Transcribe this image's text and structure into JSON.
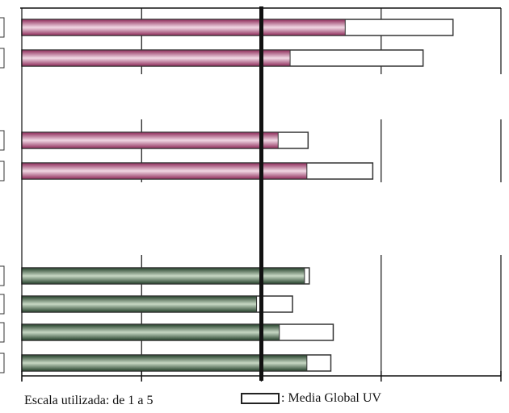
{
  "chart_data": {
    "type": "bar",
    "orientation": "horizontal",
    "xlim": [
      0,
      4
    ],
    "reference_line": 2,
    "legend": {
      "label": ": Media Global UV",
      "placement": "bottom-center"
    },
    "footer_note": "Escala utilizada: de 1 a 5",
    "groups": [
      {
        "fill": "pink",
        "rows": [
          {
            "value": 2.7,
            "global_uv": 3.6
          },
          {
            "value": 2.24,
            "global_uv": 3.35
          }
        ]
      },
      {
        "fill": "pink",
        "rows": [
          {
            "value": 2.14,
            "global_uv": 2.39
          },
          {
            "value": 2.38,
            "global_uv": 2.93
          }
        ]
      },
      {
        "fill": "green",
        "rows": [
          {
            "value": 2.36,
            "global_uv": 2.4
          },
          {
            "value": 1.96,
            "global_uv": 2.26
          },
          {
            "value": 2.15,
            "global_uv": 2.6
          },
          {
            "value": 2.38,
            "global_uv": 2.58
          }
        ]
      }
    ],
    "colors": {
      "pink_dark": "#8e2b5a",
      "pink_light": "#f1d8e4",
      "green_dark": "#24402a",
      "green_light": "#c7d8c4",
      "axis": "#111111"
    },
    "grid": true
  }
}
